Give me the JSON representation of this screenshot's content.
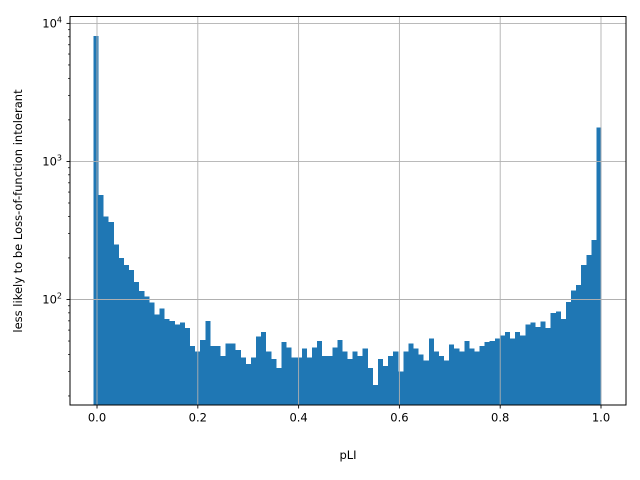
{
  "figure": {
    "title": ""
  },
  "chart_data": {
    "type": "bar",
    "subtype": "histogram",
    "title": "",
    "xlabel": "pLI",
    "ylabel": "less likely to be Loss-of-function intolerant",
    "yscale": "log",
    "grid": true,
    "legend": "none",
    "xlim": [
      -0.0536,
      1.0496
    ],
    "ylim": [
      17.2,
      11220
    ],
    "bin_start": -0.007,
    "bin_width": 0.01008,
    "counts": [
      8100,
      570,
      400,
      365,
      250,
      200,
      178,
      163,
      134,
      115,
      105,
      95,
      78,
      86,
      72,
      70,
      66,
      68,
      62,
      46,
      42,
      51,
      70,
      46,
      46,
      39,
      48,
      48,
      43,
      38,
      34,
      38,
      54,
      58,
      42,
      37,
      32,
      49,
      45,
      38,
      38,
      44,
      38,
      45,
      50,
      39,
      39,
      45,
      51,
      42,
      37,
      42,
      39,
      44,
      32,
      24,
      37,
      33,
      39,
      42,
      30,
      42,
      48,
      44,
      40,
      36,
      52,
      42,
      39,
      36,
      47,
      44,
      42,
      50,
      44,
      42,
      46,
      49,
      50,
      52,
      55,
      58,
      52,
      58,
      55,
      66,
      68,
      63,
      69,
      62,
      80,
      82,
      72,
      96,
      116,
      127,
      178,
      210,
      270,
      1760
    ],
    "x_ticks": [
      {
        "value": 0.0,
        "label": "0.0"
      },
      {
        "value": 0.2,
        "label": "0.2"
      },
      {
        "value": 0.4,
        "label": "0.4"
      },
      {
        "value": 0.6,
        "label": "0.6"
      },
      {
        "value": 0.8,
        "label": "0.8"
      },
      {
        "value": 1.0,
        "label": "1.0"
      }
    ],
    "y_ticks": [
      {
        "value": 100,
        "base": "10",
        "exp": "2"
      },
      {
        "value": 1000,
        "base": "10",
        "exp": "3"
      },
      {
        "value": 10000,
        "base": "10",
        "exp": "4"
      }
    ],
    "colors": {
      "bar": "#1f77b4",
      "grid": "#b0b0b0",
      "spine": "#000000",
      "text": "#000000",
      "background": "#ffffff"
    }
  }
}
